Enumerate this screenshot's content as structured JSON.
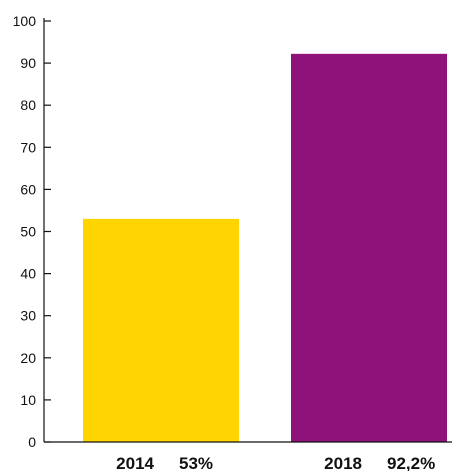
{
  "chart_data": {
    "type": "bar",
    "categories": [
      "2014",
      "2018"
    ],
    "category_labels": [
      "53%",
      "92,2%"
    ],
    "values": [
      53,
      92.2
    ],
    "colors": [
      "#FFD400",
      "#8E1279"
    ],
    "title": "",
    "xlabel": "",
    "ylabel": "",
    "ylim": [
      0,
      100
    ],
    "yticks": [
      "0",
      "10",
      "20",
      "30",
      "40",
      "50",
      "60",
      "70",
      "80",
      "90",
      "100"
    ],
    "grid": false,
    "legend": "none"
  }
}
